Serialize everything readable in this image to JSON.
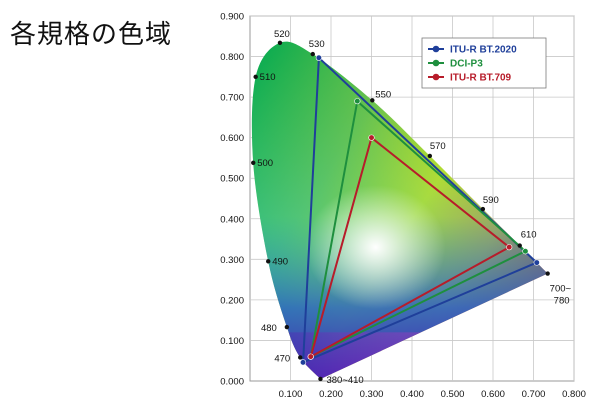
{
  "title": "各規格の色域",
  "chart_data": {
    "type": "scatter",
    "title": "各規格の色域",
    "xlabel": "",
    "ylabel": "",
    "xlim": [
      0,
      0.8
    ],
    "ylim": [
      0,
      0.9
    ],
    "x_ticks": [
      "0.100",
      "0.200",
      "0.300",
      "0.400",
      "0.500",
      "0.600",
      "0.700",
      "0.800"
    ],
    "y_ticks": [
      "0.000",
      "0.100",
      "0.200",
      "0.300",
      "0.400",
      "0.500",
      "0.600",
      "0.700",
      "0.800",
      "0.900"
    ],
    "grid": true,
    "legend_position": "top-right",
    "spectral_locus": [
      {
        "label": "380~410",
        "x": 0.174,
        "y": 0.005
      },
      {
        "label": "470",
        "x": 0.124,
        "y": 0.058
      },
      {
        "label": "480",
        "x": 0.091,
        "y": 0.133
      },
      {
        "label": "490",
        "x": 0.045,
        "y": 0.295
      },
      {
        "label": "500",
        "x": 0.008,
        "y": 0.538
      },
      {
        "label": "510",
        "x": 0.014,
        "y": 0.75
      },
      {
        "label": "520",
        "x": 0.074,
        "y": 0.834
      },
      {
        "label": "530",
        "x": 0.155,
        "y": 0.806
      },
      {
        "label": "550",
        "x": 0.302,
        "y": 0.692
      },
      {
        "label": "570",
        "x": 0.444,
        "y": 0.555
      },
      {
        "label": "590",
        "x": 0.575,
        "y": 0.424
      },
      {
        "label": "610",
        "x": 0.666,
        "y": 0.334
      },
      {
        "label": "700~780",
        "x": 0.735,
        "y": 0.265
      }
    ],
    "series": [
      {
        "name": "ITU-R BT.2020",
        "color": "#1f3f9a",
        "points": [
          {
            "x": 0.708,
            "y": 0.292
          },
          {
            "x": 0.17,
            "y": 0.797
          },
          {
            "x": 0.131,
            "y": 0.046
          }
        ]
      },
      {
        "name": "DCI-P3",
        "color": "#1e8f3e",
        "points": [
          {
            "x": 0.68,
            "y": 0.32
          },
          {
            "x": 0.265,
            "y": 0.69
          },
          {
            "x": 0.15,
            "y": 0.06
          }
        ]
      },
      {
        "name": "ITU-R BT.709",
        "color": "#b71c2a",
        "points": [
          {
            "x": 0.64,
            "y": 0.33
          },
          {
            "x": 0.3,
            "y": 0.6
          },
          {
            "x": 0.15,
            "y": 0.06
          }
        ]
      }
    ]
  }
}
